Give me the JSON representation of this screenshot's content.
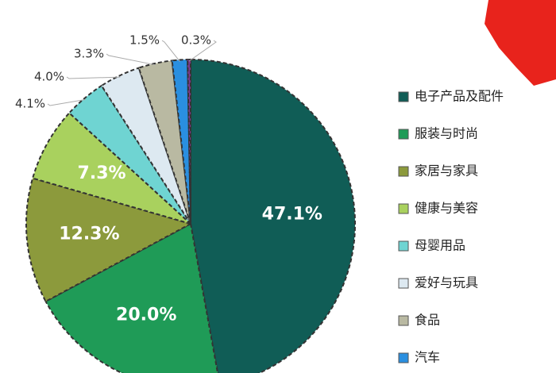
{
  "chart_data": {
    "type": "pie",
    "categories": [
      "电子产品及配件",
      "服装与时尚",
      "家居与家具",
      "健康与美容",
      "母婴用品",
      "爱好与玩具",
      "食品",
      "汽车",
      null
    ],
    "values": [
      47.1,
      20.0,
      12.3,
      7.3,
      4.1,
      4.0,
      3.3,
      1.5,
      0.3
    ],
    "value_labels": [
      "47.1%",
      "20.0%",
      "12.3%",
      "7.3%",
      "4.1%",
      "4.0%",
      "3.3%",
      "1.5%",
      "0.3%"
    ],
    "colors": [
      "#105d56",
      "#1f9b57",
      "#8c9a3c",
      "#a9d15e",
      "#6fd4d2",
      "#dde9f1",
      "#b9b9a2",
      "#2a8fe0",
      "#7a3a8a"
    ],
    "legend": "right"
  }
}
